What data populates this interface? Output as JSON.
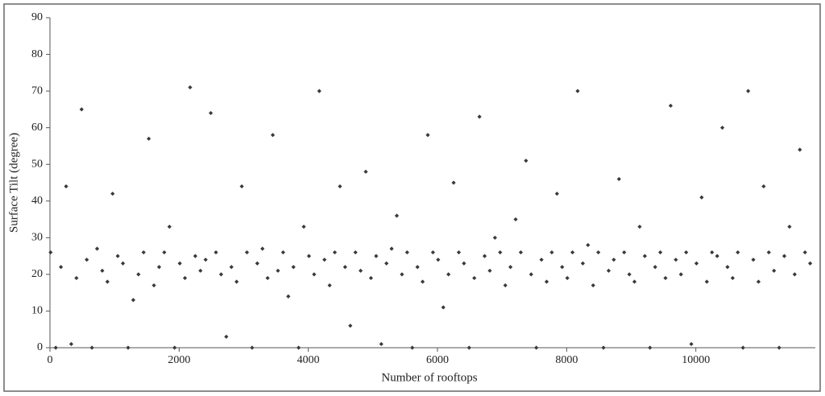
{
  "chart_data": {
    "type": "scatter",
    "xlabel": "Number of rooftops",
    "ylabel": "Surface Tilt (degree)",
    "xlim": [
      0,
      11850
    ],
    "ylim": [
      0,
      90
    ],
    "xticks": [
      0,
      2000,
      4000,
      6000,
      8000,
      10000
    ],
    "yticks": [
      0,
      10,
      20,
      30,
      40,
      50,
      60,
      70,
      80,
      90
    ],
    "color": "#3a3a3a",
    "grid": false,
    "x": [
      10,
      90,
      170,
      250,
      330,
      410,
      490,
      570,
      650,
      730,
      810,
      890,
      970,
      1050,
      1130,
      1210,
      1290,
      1370,
      1450,
      1530,
      1610,
      1690,
      1770,
      1850,
      1930,
      2010,
      2090,
      2170,
      2250,
      2330,
      2410,
      2490,
      2570,
      2650,
      2730,
      2810,
      2890,
      2970,
      3050,
      3130,
      3210,
      3290,
      3370,
      3450,
      3530,
      3610,
      3690,
      3770,
      3850,
      3930,
      4010,
      4090,
      4170,
      4250,
      4330,
      4410,
      4490,
      4570,
      4650,
      4730,
      4810,
      4890,
      4970,
      5050,
      5130,
      5210,
      5290,
      5370,
      5450,
      5530,
      5610,
      5690,
      5770,
      5850,
      5930,
      6010,
      6090,
      6170,
      6250,
      6330,
      6410,
      6490,
      6570,
      6650,
      6730,
      6810,
      6890,
      6970,
      7050,
      7130,
      7210,
      7290,
      7370,
      7450,
      7530,
      7610,
      7690,
      7770,
      7850,
      7930,
      8010,
      8090,
      8170,
      8250,
      8330,
      8410,
      8490,
      8570,
      8650,
      8730,
      8810,
      8890,
      8970,
      9050,
      9130,
      9210,
      9290,
      9370,
      9450,
      9530,
      9610,
      9690,
      9770,
      9850,
      9930,
      10010,
      10090,
      10170,
      10250,
      10330,
      10410,
      10490,
      10570,
      10650,
      10730,
      10810,
      10890,
      10970,
      11050,
      11130,
      11210,
      11290,
      11370,
      11450,
      11530,
      11610,
      11690,
      11770
    ],
    "values": [
      26,
      0,
      22,
      44,
      1,
      19,
      65,
      24,
      0,
      27,
      21,
      18,
      42,
      25,
      23,
      0,
      13,
      20,
      26,
      57,
      17,
      22,
      26,
      33,
      0,
      23,
      19,
      71,
      25,
      21,
      24,
      64,
      26,
      20,
      3,
      22,
      18,
      44,
      26,
      0,
      23,
      27,
      19,
      58,
      21,
      26,
      14,
      22,
      0,
      33,
      25,
      20,
      70,
      24,
      17,
      26,
      44,
      22,
      6,
      26,
      21,
      48,
      19,
      25,
      1,
      23,
      27,
      36,
      20,
      26,
      0,
      22,
      18,
      58,
      26,
      24,
      11,
      20,
      45,
      26,
      23,
      0,
      19,
      63,
      25,
      21,
      30,
      26,
      17,
      22,
      35,
      26,
      51,
      20,
      0,
      24,
      18,
      26,
      42,
      22,
      19,
      26,
      70,
      23,
      28,
      17,
      26,
      0,
      21,
      24,
      46,
      26,
      20,
      18,
      33,
      25,
      0,
      22,
      26,
      19,
      66,
      24,
      20,
      26,
      1,
      23,
      41,
      18,
      26,
      25,
      60,
      22,
      19,
      26,
      0,
      70,
      24,
      18,
      44,
      26,
      21,
      0,
      25,
      33,
      20,
      54,
      26,
      23
    ]
  }
}
